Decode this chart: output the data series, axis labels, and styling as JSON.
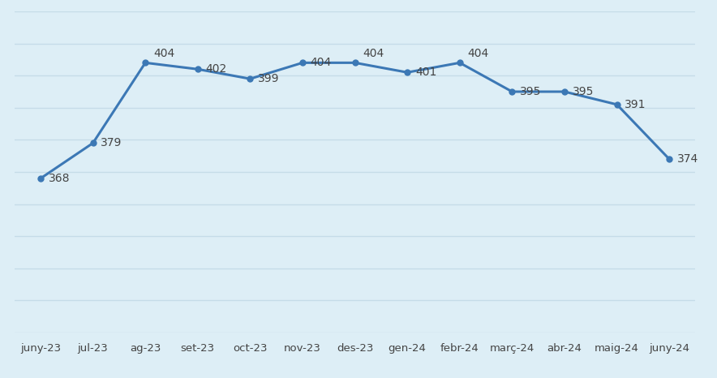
{
  "categories": [
    "juny-23",
    "jul-23",
    "ag-23",
    "set-23",
    "oct-23",
    "nov-23",
    "des-23",
    "gen-24",
    "febr-24",
    "març-24",
    "abr-24",
    "maig-24",
    "juny-24"
  ],
  "values": [
    368,
    379,
    404,
    402,
    399,
    404,
    404,
    401,
    404,
    395,
    395,
    391,
    374
  ],
  "line_color": "#3c78b5",
  "marker_color": "#3c78b5",
  "bg_color": "#ddeef6",
  "grid_color": "#c5dce8",
  "label_color": "#444444",
  "ylim": [
    320,
    420
  ],
  "yticks": [
    320,
    330,
    340,
    350,
    360,
    370,
    380,
    390,
    400,
    410,
    420
  ],
  "line_width": 2.2,
  "marker_size": 5,
  "label_fontsize": 10,
  "xlabel_fontsize": 9.5
}
